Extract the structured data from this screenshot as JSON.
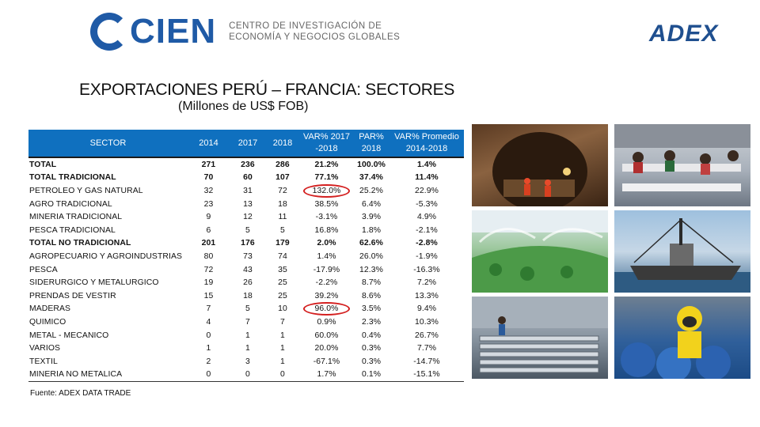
{
  "header": {
    "cien_logo_text": "CIEN",
    "cien_subtitle_line1": "CENTRO DE INVESTIGACIÓN DE",
    "cien_subtitle_line2": "ECONOMÍA Y NEGOCIOS GLOBALES",
    "adex_logo_text": "ADEX",
    "brand_color": "#1f5aa6"
  },
  "title": "EXPORTACIONES PERÚ – FRANCIA: SECTORES",
  "subtitle": "(Millones de US$ FOB)",
  "table": {
    "header_color": "#0f70bf",
    "columns": {
      "sector": "SECTOR",
      "y2014": "2014",
      "y2017": "2017",
      "y2018": "2018",
      "var_line1": "VAR% 2017",
      "var_line2": "-2018",
      "par_line1": "PAR%",
      "par_line2": "2018",
      "prom_line1": "VAR% Promedio",
      "prom_line2": "2014-2018"
    },
    "rows": [
      {
        "sector": "TOTAL",
        "y2014": "271",
        "y2017": "236",
        "y2018": "286",
        "var": "21.2%",
        "par": "100.0%",
        "prom": "1.4%",
        "bold": true
      },
      {
        "sector": "TOTAL TRADICIONAL",
        "y2014": "70",
        "y2017": "60",
        "y2018": "107",
        "var": "77.1%",
        "par": "37.4%",
        "prom": "11.4%",
        "bold": true
      },
      {
        "sector": "PETROLEO Y GAS NATURAL",
        "y2014": "32",
        "y2017": "31",
        "y2018": "72",
        "var": "132.0%",
        "par": "25.2%",
        "prom": "22.9%",
        "bold": false,
        "circled": true
      },
      {
        "sector": "AGRO TRADICIONAL",
        "y2014": "23",
        "y2017": "13",
        "y2018": "18",
        "var": "38.5%",
        "par": "6.4%",
        "prom": "-5.3%",
        "bold": false
      },
      {
        "sector": "MINERIA TRADICIONAL",
        "y2014": "9",
        "y2017": "12",
        "y2018": "11",
        "var": "-3.1%",
        "par": "3.9%",
        "prom": "4.9%",
        "bold": false
      },
      {
        "sector": "PESCA TRADICIONAL",
        "y2014": "6",
        "y2017": "5",
        "y2018": "5",
        "var": "16.8%",
        "par": "1.8%",
        "prom": "-2.1%",
        "bold": false
      },
      {
        "sector": "TOTAL NO TRADICIONAL",
        "y2014": "201",
        "y2017": "176",
        "y2018": "179",
        "var": "2.0%",
        "par": "62.6%",
        "prom": "-2.8%",
        "bold": true
      },
      {
        "sector": "AGROPECUARIO Y AGROINDUSTRIAS",
        "y2014": "80",
        "y2017": "73",
        "y2018": "74",
        "var": "1.4%",
        "par": "26.0%",
        "prom": "-1.9%",
        "bold": false
      },
      {
        "sector": "PESCA",
        "y2014": "72",
        "y2017": "43",
        "y2018": "35",
        "var": "-17.9%",
        "par": "12.3%",
        "prom": "-16.3%",
        "bold": false
      },
      {
        "sector": "SIDERURGICO Y METALURGICO",
        "y2014": "19",
        "y2017": "26",
        "y2018": "25",
        "var": "-2.2%",
        "par": "8.7%",
        "prom": "7.2%",
        "bold": false
      },
      {
        "sector": "PRENDAS DE VESTIR",
        "y2014": "15",
        "y2017": "18",
        "y2018": "25",
        "var": "39.2%",
        "par": "8.6%",
        "prom": "13.3%",
        "bold": false
      },
      {
        "sector": "MADERAS",
        "y2014": "7",
        "y2017": "5",
        "y2018": "10",
        "var": "96.0%",
        "par": "3.5%",
        "prom": "9.4%",
        "bold": false,
        "circled": true
      },
      {
        "sector": "QUIMICO",
        "y2014": "4",
        "y2017": "7",
        "y2018": "7",
        "var": "0.9%",
        "par": "2.3%",
        "prom": "10.3%",
        "bold": false
      },
      {
        "sector": "METAL - MECANICO",
        "y2014": "0",
        "y2017": "1",
        "y2018": "1",
        "var": "60.0%",
        "par": "0.4%",
        "prom": "26.7%",
        "bold": false
      },
      {
        "sector": "VARIOS",
        "y2014": "1",
        "y2017": "1",
        "y2018": "1",
        "var": "20.0%",
        "par": "0.3%",
        "prom": "7.7%",
        "bold": false
      },
      {
        "sector": "TEXTIL",
        "y2014": "2",
        "y2017": "3",
        "y2018": "1",
        "var": "-67.1%",
        "par": "0.3%",
        "prom": "-14.7%",
        "bold": false
      },
      {
        "sector": "MINERIA NO METALICA",
        "y2014": "0",
        "y2017": "0",
        "y2018": "0",
        "var": "1.7%",
        "par": "0.1%",
        "prom": "-15.1%",
        "bold": false
      }
    ]
  },
  "footer": {
    "source": "Fuente: ADEX DATA TRADE"
  },
  "photos": [
    {
      "icon": "mining-tunnel-photo"
    },
    {
      "icon": "garment-factory-photo"
    },
    {
      "icon": "crop-irrigation-photo"
    },
    {
      "icon": "fishing-boat-photo"
    },
    {
      "icon": "steel-pipes-photo"
    },
    {
      "icon": "chemical-worker-photo"
    }
  ]
}
